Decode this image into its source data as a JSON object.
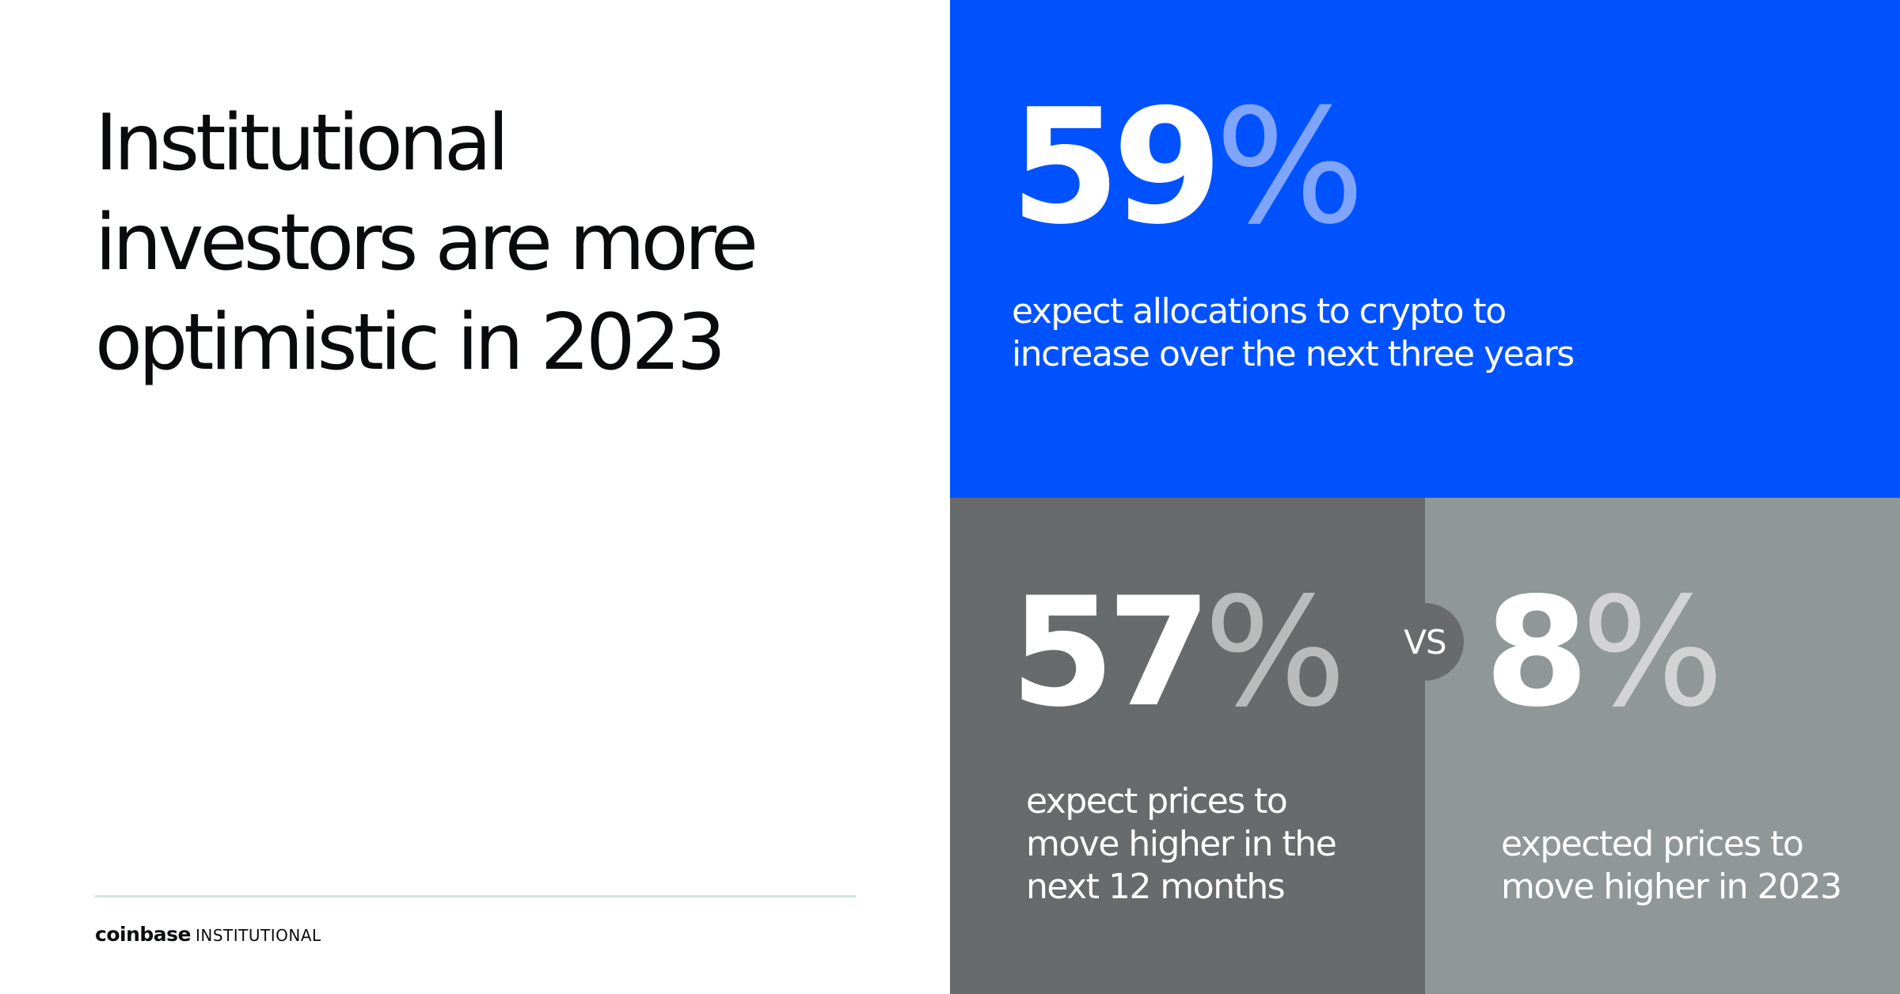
{
  "headline": {
    "lines": [
      "Institutional",
      "investors are more",
      "optimistic in 2023"
    ]
  },
  "brand": {
    "wordmark": "coinbase",
    "suffix": "INSTITUTIONAL"
  },
  "stats": {
    "allocations": {
      "number": "59",
      "percent_sign": "%",
      "description_lines": [
        "expect allocations to crypto to",
        "increase over the next three years"
      ]
    },
    "prices_12_months": {
      "number": "57",
      "percent_sign": "%",
      "description_lines": [
        "expect prices to",
        "move higher in the",
        "next 12 months"
      ]
    },
    "prices_2023": {
      "number": "8",
      "percent_sign": "%",
      "description_lines": [
        "expected prices to",
        "move higher in 2023"
      ]
    }
  },
  "comparison": {
    "label": "VS"
  },
  "colors": {
    "blue_panel": "#0052ff",
    "dark_gray_panel": "#686b6b",
    "light_gray_panel": "#8f9797",
    "divider": "#d3e4e2"
  }
}
